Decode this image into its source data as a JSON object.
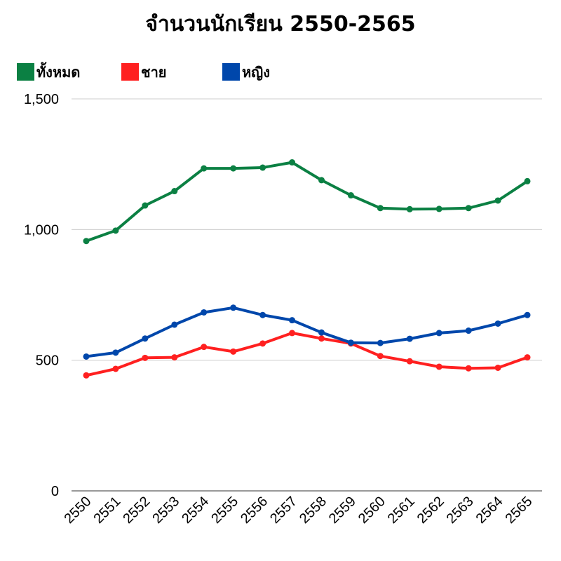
{
  "chart_data": {
    "type": "line",
    "title": "จำนวนนักเรียน 2550-2565",
    "xlabel": "",
    "ylabel": "",
    "x": [
      "2550",
      "2551",
      "2552",
      "2553",
      "2554",
      "2555",
      "2556",
      "2557",
      "2558",
      "2559",
      "2560",
      "2561",
      "2562",
      "2563",
      "2564",
      "2565"
    ],
    "ylim": [
      0,
      1500
    ],
    "yticks": [
      0,
      500,
      1000,
      1500
    ],
    "ytick_labels": [
      "0",
      "500",
      "1,000",
      "1,500"
    ],
    "grid": true,
    "legend_position": "top-left",
    "series": [
      {
        "name": "ทั้งหมด",
        "color": "#0b8043",
        "values": [
          956,
          996,
          1092,
          1147,
          1234,
          1234,
          1237,
          1257,
          1189,
          1131,
          1082,
          1078,
          1079,
          1082,
          1111,
          1185
        ]
      },
      {
        "name": "ชาย",
        "color": "#ff2020",
        "values": [
          442,
          467,
          509,
          511,
          551,
          533,
          564,
          604,
          583,
          564,
          516,
          496,
          475,
          469,
          471,
          511
        ]
      },
      {
        "name": "หญิง",
        "color": "#0047ab",
        "values": [
          514,
          529,
          583,
          636,
          683,
          701,
          673,
          653,
          606,
          567,
          566,
          582,
          604,
          613,
          640,
          673
        ]
      }
    ]
  }
}
